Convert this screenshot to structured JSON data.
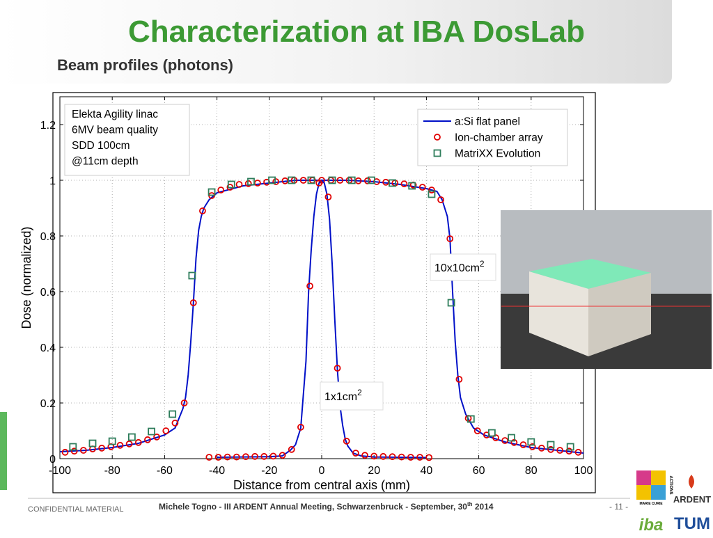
{
  "slide": {
    "title": "Characterization at IBA DosLab",
    "subtitle": "Beam profiles (photons)",
    "footer_left": "CONFIDENTIAL MATERIAL",
    "footer_center": [
      "Michele Togno - III ARDENT Annual Meeting, Schwarzenbruck - September, 30",
      "th",
      " 2014"
    ],
    "page": "- 11 -",
    "logos": {
      "marie_curie": "MARIE CURIE",
      "actions": "ACTIONS",
      "ardent": "ARDENT",
      "iba": "iba",
      "tum": "TUM"
    }
  },
  "chart_data": {
    "type": "line",
    "x_label": "Distance from central axis (mm)",
    "y_label": "Dose (normalized)",
    "xlim": [
      -100,
      100
    ],
    "xticks": [
      -100,
      -80,
      -60,
      -40,
      -20,
      0,
      20,
      40,
      60,
      80,
      100
    ],
    "ylim": [
      0,
      1.3
    ],
    "yticks": [
      0,
      0.2,
      0.4,
      0.6,
      0.8,
      1,
      1.2
    ],
    "grid": true,
    "legend": "upper right",
    "info_box": [
      "Elekta Agility linac",
      "6MV beam quality",
      "SDD 100cm",
      "@11cm depth"
    ],
    "annotations": [
      {
        "text": "10x10cm",
        "sup": "2"
      },
      {
        "text": "1x1cm",
        "sup": "2"
      }
    ],
    "series": [
      {
        "name": "a:Si flat panel",
        "kind": "line",
        "color": "#0010c8",
        "x": [
          -100,
          -90,
          -80,
          -70,
          -60,
          -56,
          -53,
          -52,
          -51,
          -50,
          -49,
          -48,
          -47,
          -46,
          -45,
          -43,
          -40,
          -30,
          -20,
          -10,
          0,
          10,
          20,
          30,
          40,
          44,
          46,
          48,
          49,
          50,
          51,
          52,
          53,
          55,
          58,
          62,
          70,
          80,
          90,
          100
        ],
        "values": [
          0.025,
          0.03,
          0.04,
          0.055,
          0.085,
          0.11,
          0.18,
          0.22,
          0.3,
          0.42,
          0.56,
          0.72,
          0.82,
          0.87,
          0.9,
          0.93,
          0.955,
          0.98,
          0.99,
          1.0,
          1.0,
          1.0,
          0.995,
          0.985,
          0.97,
          0.96,
          0.93,
          0.87,
          0.79,
          0.6,
          0.42,
          0.3,
          0.22,
          0.16,
          0.11,
          0.085,
          0.06,
          0.04,
          0.03,
          0.02
        ]
      },
      {
        "name": "Ion-chamber array",
        "kind": "marker",
        "marker": "circle",
        "color": "#e00000",
        "x": [
          -98,
          -94.5,
          -91,
          -87.5,
          -84,
          -80.5,
          -77,
          -73.5,
          -70,
          -66.5,
          -63,
          -59.5,
          -56,
          -52.5,
          -49,
          -45.5,
          -42,
          -38.5,
          -35,
          -31.5,
          -28,
          -24.5,
          -21,
          -17.5,
          -14,
          -10.5,
          -7,
          -3.5,
          0,
          3.5,
          7,
          10.5,
          14,
          17.5,
          21,
          24.5,
          28,
          31.5,
          35,
          38.5,
          42,
          45.5,
          49,
          52.5,
          56,
          59.5,
          63,
          66.5,
          70,
          73.5,
          77,
          80.5,
          84,
          87.5,
          91,
          94.5,
          98
        ],
        "values": [
          0.023,
          0.027,
          0.03,
          0.035,
          0.038,
          0.043,
          0.048,
          0.053,
          0.058,
          0.068,
          0.078,
          0.1,
          0.128,
          0.2,
          0.56,
          0.89,
          0.945,
          0.965,
          0.975,
          0.985,
          0.988,
          0.99,
          0.993,
          0.995,
          0.998,
          1.0,
          1.0,
          1.0,
          1.0,
          1.0,
          1.0,
          1.0,
          0.998,
          0.998,
          0.995,
          0.993,
          0.99,
          0.987,
          0.983,
          0.975,
          0.965,
          0.93,
          0.79,
          0.285,
          0.145,
          0.1,
          0.085,
          0.075,
          0.065,
          0.058,
          0.05,
          0.043,
          0.038,
          0.033,
          0.03,
          0.027,
          0.023
        ]
      },
      {
        "name": "MatriXX Evolution",
        "kind": "marker",
        "marker": "square",
        "color": "#2e7d5b",
        "x": [
          -95,
          -87.5,
          -80,
          -72.5,
          -65,
          -57,
          -49.5,
          -42,
          -34.5,
          -27,
          -19,
          -11.5,
          -4,
          4,
          11.5,
          19,
          27,
          34.5,
          42,
          49.5,
          57,
          65,
          72.5,
          80,
          87.5,
          95
        ],
        "values": [
          0.0425,
          0.055,
          0.0625,
          0.0775,
          0.0975,
          0.16,
          0.6575,
          0.9575,
          0.985,
          0.995,
          1.0,
          1.0,
          1.0,
          1.0,
          1.0,
          1.0,
          0.99,
          0.98,
          0.95,
          0.56,
          0.1425,
          0.0925,
          0.075,
          0.06,
          0.05,
          0.0425
        ]
      },
      {
        "kind": "line",
        "color": "#0010c8",
        "x": [
          -40,
          -20,
          -15,
          -12,
          -10,
          -8,
          -6,
          -5,
          -4,
          -3,
          -2,
          -1,
          0,
          1,
          2,
          3,
          4,
          5,
          6,
          7,
          8,
          9,
          10,
          12,
          15,
          20,
          40
        ],
        "values": [
          0.005,
          0.007,
          0.01,
          0.03,
          0.05,
          0.11,
          0.35,
          0.6,
          0.75,
          0.87,
          0.95,
          0.99,
          1.0,
          0.99,
          0.95,
          0.86,
          0.7,
          0.5,
          0.32,
          0.19,
          0.12,
          0.07,
          0.045,
          0.02,
          0.01,
          0.006,
          0.004
        ]
      },
      {
        "kind": "marker",
        "marker": "circle",
        "color": "#e00000",
        "x": [
          -43,
          -39.5,
          -36,
          -32.5,
          -29,
          -25.5,
          -22,
          -18.5,
          -15,
          -11.5,
          -8,
          -4.5,
          -1,
          2.5,
          6,
          9.5,
          13,
          16.5,
          20,
          23.5,
          27,
          30.5,
          34,
          37.5,
          41
        ],
        "values": [
          0.005,
          0.005,
          0.006,
          0.006,
          0.007,
          0.008,
          0.008,
          0.009,
          0.012,
          0.033,
          0.113,
          0.62,
          0.99,
          0.94,
          0.325,
          0.063,
          0.02,
          0.012,
          0.009,
          0.008,
          0.007,
          0.006,
          0.005,
          0.005,
          0.004
        ]
      }
    ]
  }
}
